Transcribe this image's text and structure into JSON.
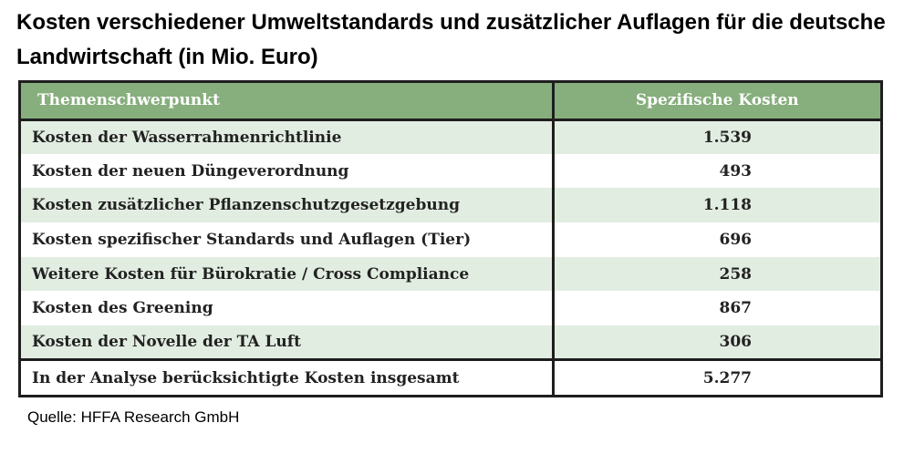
{
  "title": "Kosten verschiedener Umweltstandards und zusätzlicher Auflagen für die deutsche Landwirtschaft (in Mio. Euro)",
  "table": {
    "headers": [
      "Themenschwerpunkt",
      "Spezifische Kosten"
    ],
    "rows": [
      {
        "topic": "Kosten der Wasserrahmenrichtlinie",
        "cost": "1.539"
      },
      {
        "topic": "Kosten der neuen Düngeverordnung",
        "cost": "493"
      },
      {
        "topic": "Kosten zusätzlicher Pflanzenschutzgesetzgebung",
        "cost": "1.118"
      },
      {
        "topic": "Kosten spezifischer Standards und Auflagen (Tier)",
        "cost": "696"
      },
      {
        "topic": "Weitere Kosten für Bürokratie / Cross Compliance",
        "cost": "258"
      },
      {
        "topic": "Kosten des Greening",
        "cost": "867"
      },
      {
        "topic": "Kosten der Novelle der TA Luft",
        "cost": "306"
      }
    ],
    "total": {
      "topic": "In der Analyse berücksichtigte Kosten insgesamt",
      "cost": "5.277"
    }
  },
  "source": "Quelle: HFFA Research GmbH",
  "colors": {
    "header_bg": "#87ae7d",
    "stripe_bg": "#e2ede1",
    "border": "#1e1e1e"
  }
}
